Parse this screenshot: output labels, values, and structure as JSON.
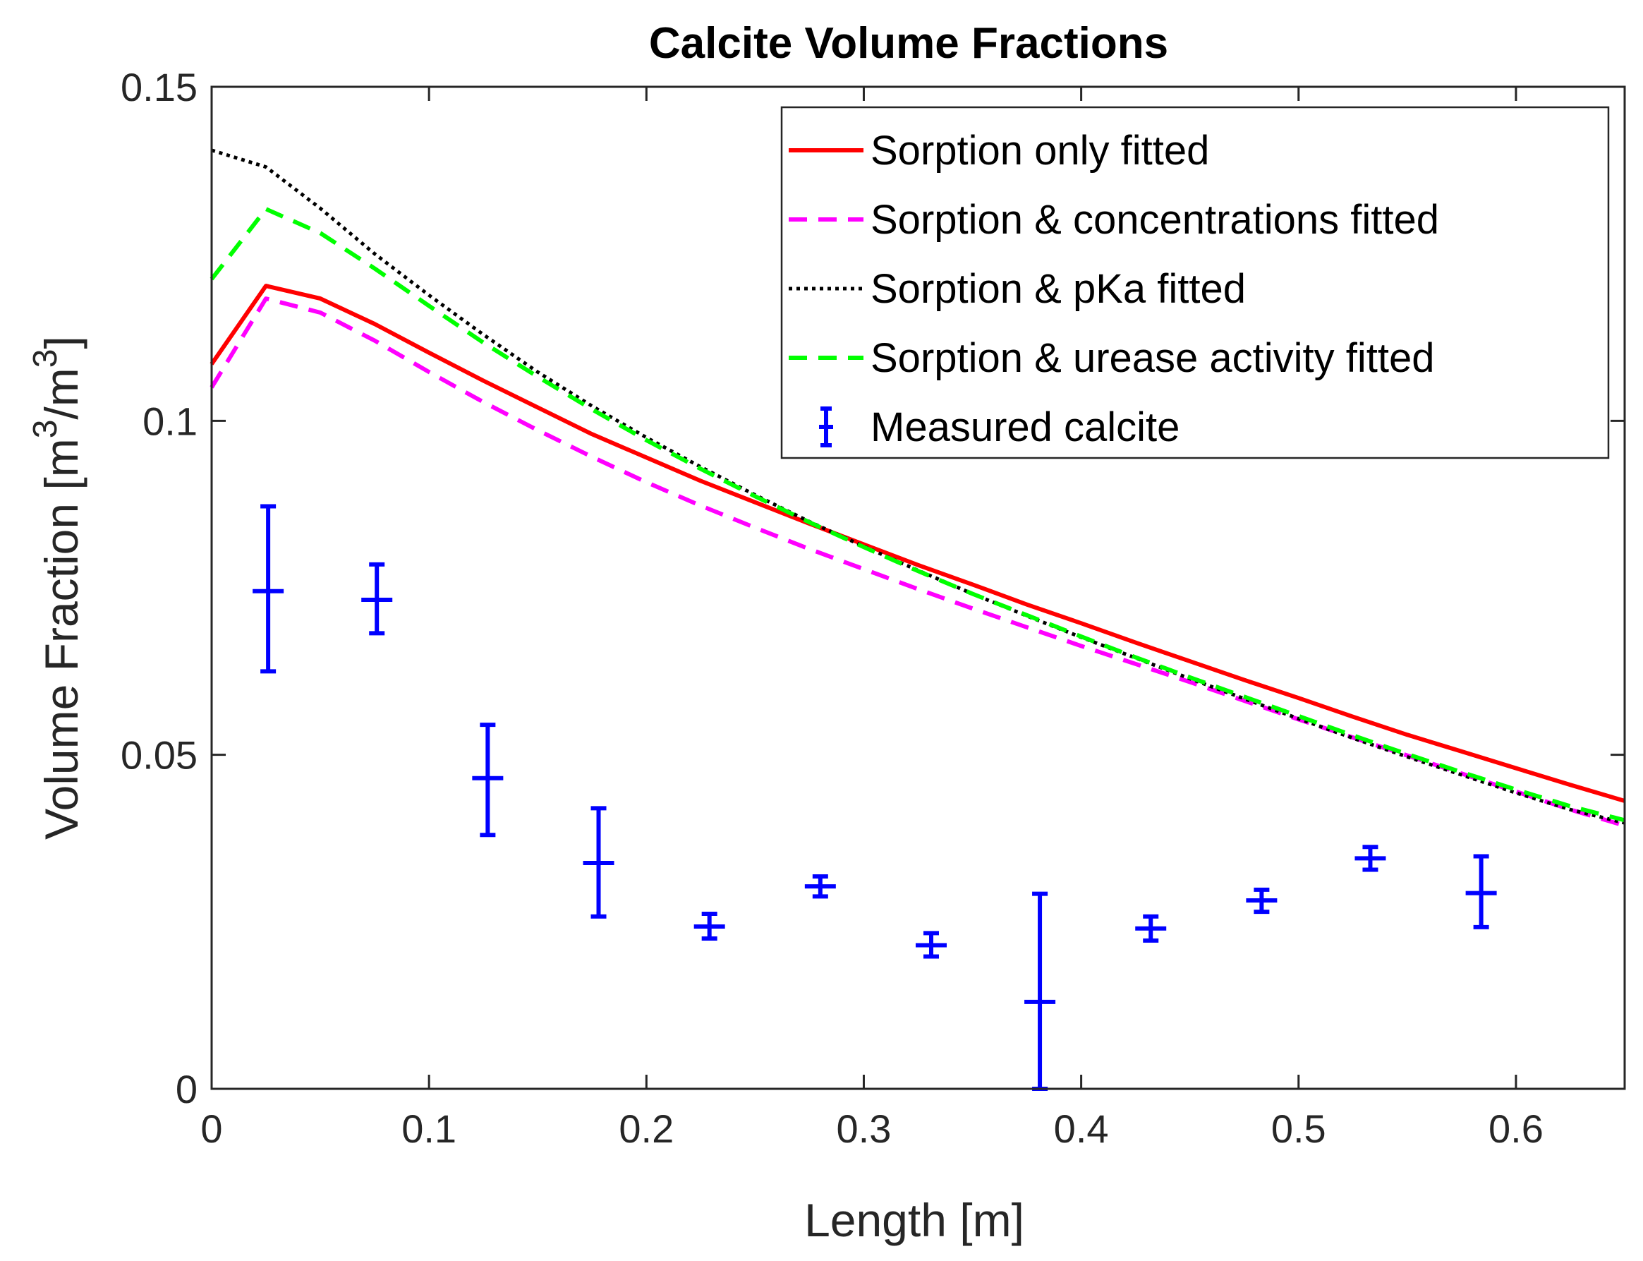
{
  "chart_data": {
    "type": "line",
    "title": "Calcite Volume Fractions",
    "xlabel": "Length [m]",
    "ylabel": "Volume Fraction [m³/m³]",
    "ylabel_parts": {
      "main": "Volume Fraction [m",
      "sup1": "3",
      "mid": "/m",
      "sup2": "3",
      "end": "]"
    },
    "xlim": [
      0,
      0.65
    ],
    "ylim": [
      0,
      0.15
    ],
    "xticks": [
      0,
      0.1,
      0.2,
      0.3,
      0.4,
      0.5,
      0.6
    ],
    "xtick_labels": [
      "0",
      "0.1",
      "0.2",
      "0.3",
      "0.4",
      "0.5",
      "0.6"
    ],
    "yticks": [
      0,
      0.05,
      0.1,
      0.15
    ],
    "ytick_labels": [
      "0",
      "0.05",
      "0.1",
      "0.15"
    ],
    "grid": false,
    "legend_position": "top-right",
    "series": [
      {
        "name": "Sorption only fitted",
        "style": "solid",
        "color": "#ff0000",
        "x": [
          0,
          0.025,
          0.05,
          0.075,
          0.1,
          0.125,
          0.15,
          0.175,
          0.2,
          0.225,
          0.25,
          0.275,
          0.3,
          0.325,
          0.35,
          0.375,
          0.4,
          0.425,
          0.45,
          0.475,
          0.5,
          0.525,
          0.55,
          0.575,
          0.6,
          0.625,
          0.65
        ],
        "y": [
          0.1085,
          0.1202,
          0.1183,
          0.1145,
          0.1102,
          0.106,
          0.102,
          0.098,
          0.0945,
          0.091,
          0.0878,
          0.0846,
          0.0815,
          0.0784,
          0.0755,
          0.0725,
          0.0697,
          0.0668,
          0.064,
          0.0612,
          0.0585,
          0.0557,
          0.053,
          0.0505,
          0.048,
          0.0455,
          0.0431
        ]
      },
      {
        "name": "Sorption & concentrations fitted",
        "style": "dashed",
        "color": "#ff00ff",
        "x": [
          0,
          0.025,
          0.05,
          0.075,
          0.1,
          0.125,
          0.15,
          0.175,
          0.2,
          0.225,
          0.25,
          0.275,
          0.3,
          0.325,
          0.35,
          0.375,
          0.4,
          0.425,
          0.45,
          0.475,
          0.5,
          0.525,
          0.55,
          0.575,
          0.6,
          0.625,
          0.65
        ],
        "y": [
          0.105,
          0.1183,
          0.1162,
          0.112,
          0.1073,
          0.1028,
          0.0986,
          0.0946,
          0.0908,
          0.0873,
          0.084,
          0.0808,
          0.0778,
          0.0748,
          0.0719,
          0.0691,
          0.0663,
          0.0636,
          0.0609,
          0.0581,
          0.0553,
          0.0526,
          0.0499,
          0.0472,
          0.0445,
          0.0418,
          0.0394
        ]
      },
      {
        "name": "Sorption & pKa fitted",
        "style": "dotted",
        "color": "#000000",
        "x": [
          0,
          0.025,
          0.05,
          0.075,
          0.1,
          0.125,
          0.15,
          0.175,
          0.2,
          0.225,
          0.25,
          0.275,
          0.3,
          0.325,
          0.35,
          0.375,
          0.4,
          0.425,
          0.45,
          0.475,
          0.5,
          0.525,
          0.55,
          0.575,
          0.6,
          0.625,
          0.65
        ],
        "y": [
          0.1405,
          0.138,
          0.1318,
          0.125,
          0.1188,
          0.1129,
          0.1073,
          0.1022,
          0.0975,
          0.0931,
          0.0889,
          0.0849,
          0.0812,
          0.0776,
          0.0741,
          0.0708,
          0.0676,
          0.0645,
          0.0614,
          0.0584,
          0.0554,
          0.0525,
          0.0497,
          0.047,
          0.0443,
          0.0418,
          0.0398
        ]
      },
      {
        "name": "Sorption & urease activity fitted",
        "style": "dashed",
        "color": "#00ff00",
        "x": [
          0,
          0.025,
          0.05,
          0.075,
          0.1,
          0.125,
          0.15,
          0.175,
          0.2,
          0.225,
          0.25,
          0.275,
          0.3,
          0.325,
          0.35,
          0.375,
          0.4,
          0.425,
          0.45,
          0.475,
          0.5,
          0.525,
          0.55,
          0.575,
          0.6,
          0.625,
          0.65
        ],
        "y": [
          0.1212,
          0.1317,
          0.1281,
          0.1228,
          0.1172,
          0.1117,
          0.1066,
          0.1017,
          0.0971,
          0.0928,
          0.0887,
          0.0848,
          0.0811,
          0.0775,
          0.0741,
          0.0709,
          0.0677,
          0.0646,
          0.0616,
          0.0587,
          0.0558,
          0.0529,
          0.0501,
          0.0474,
          0.0448,
          0.0423,
          0.0402
        ]
      }
    ],
    "errorbars": {
      "name": "Measured calcite",
      "color": "#0000ff",
      "points": [
        {
          "x": 0.026,
          "y": 0.0745,
          "lo": 0.0625,
          "hi": 0.0872
        },
        {
          "x": 0.076,
          "y": 0.0732,
          "lo": 0.0682,
          "hi": 0.0785
        },
        {
          "x": 0.127,
          "y": 0.0465,
          "lo": 0.038,
          "hi": 0.0545
        },
        {
          "x": 0.178,
          "y": 0.0338,
          "lo": 0.0258,
          "hi": 0.042
        },
        {
          "x": 0.229,
          "y": 0.0243,
          "lo": 0.0225,
          "hi": 0.0262
        },
        {
          "x": 0.28,
          "y": 0.0303,
          "lo": 0.0288,
          "hi": 0.0318
        },
        {
          "x": 0.331,
          "y": 0.0215,
          "lo": 0.0198,
          "hi": 0.0233
        },
        {
          "x": 0.381,
          "y": 0.013,
          "lo": 0.0,
          "hi": 0.0292
        },
        {
          "x": 0.432,
          "y": 0.024,
          "lo": 0.0222,
          "hi": 0.0258
        },
        {
          "x": 0.483,
          "y": 0.0282,
          "lo": 0.0265,
          "hi": 0.0298
        },
        {
          "x": 0.533,
          "y": 0.0345,
          "lo": 0.0328,
          "hi": 0.0362
        },
        {
          "x": 0.584,
          "y": 0.0293,
          "lo": 0.0242,
          "hi": 0.0348
        }
      ]
    }
  }
}
